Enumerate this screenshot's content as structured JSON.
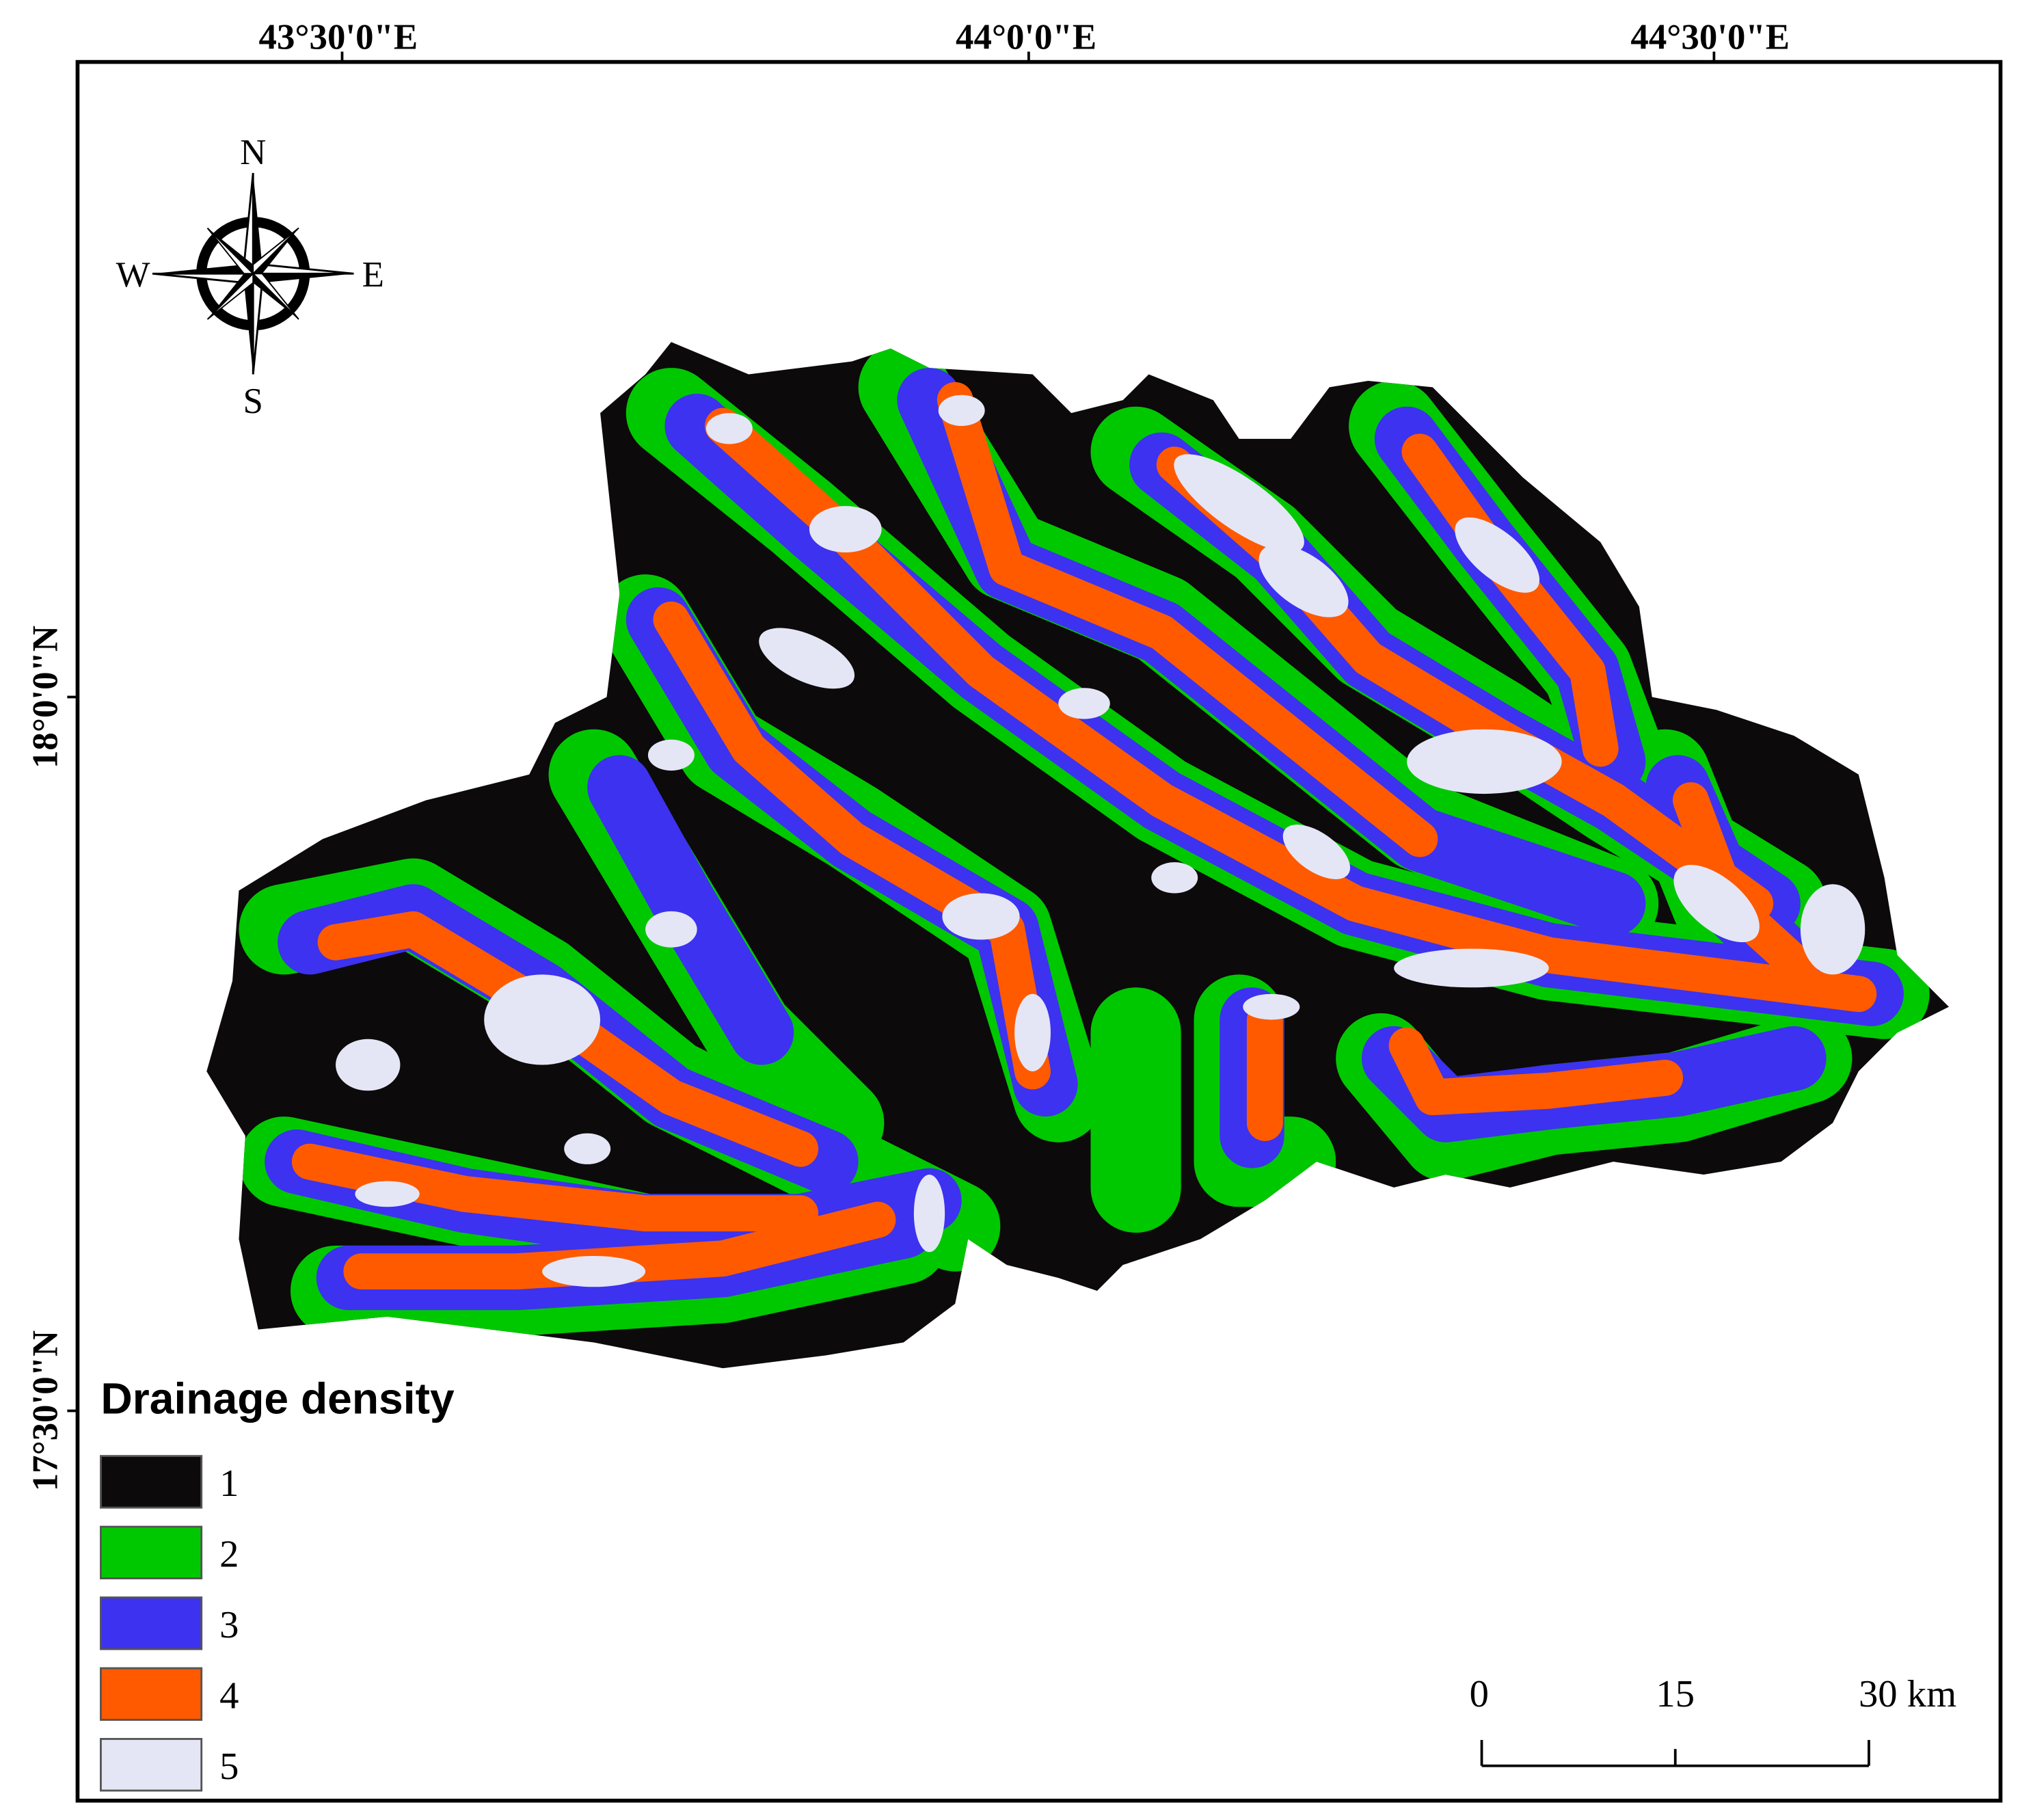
{
  "graticule": {
    "top": [
      "43°30'0\"E",
      "44°0'0\"E",
      "44°30'0\"E"
    ],
    "left": [
      "18°0'0\"N",
      "17°30'0\"N"
    ]
  },
  "compass": {
    "north": "N",
    "south": "S",
    "west": "W",
    "east": "E"
  },
  "legend": {
    "title": "Drainage density",
    "items": [
      {
        "label": "1",
        "color": "#0d0a0b"
      },
      {
        "label": "2",
        "color": "#00c800"
      },
      {
        "label": "3",
        "color": "#3c32f0"
      },
      {
        "label": "4",
        "color": "#ff5a00"
      },
      {
        "label": "5",
        "color": "#e4e6f5"
      }
    ]
  },
  "scale_bar": {
    "labels": [
      "0",
      "15",
      "30 km"
    ]
  }
}
